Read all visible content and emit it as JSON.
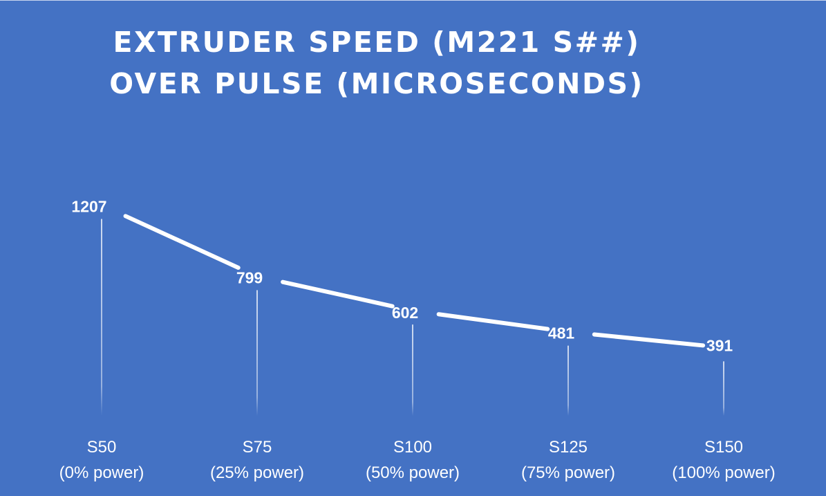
{
  "chart_data": {
    "type": "line",
    "title_lines": [
      "EXTRUDER SPEED (M221 S##)",
      "OVER PULSE (MICROSECONDS)"
    ],
    "categories": [
      [
        "S50",
        "(0% power)"
      ],
      [
        "S75",
        "(25% power)"
      ],
      [
        "S100",
        "(50% power)"
      ],
      [
        "S125",
        "(75% power)"
      ],
      [
        "S150",
        "(100% power)"
      ]
    ],
    "series": [
      {
        "values": [
          1207,
          799,
          602,
          481,
          391
        ]
      }
    ],
    "ylim": [
      0,
      1550
    ],
    "data_labels": true,
    "drop_lines": true,
    "grid": false,
    "legend": "none",
    "colors": {
      "background": "#4472C4",
      "line": "#ffffff",
      "drop_line": "#dfe7f5",
      "text": "#ffffff"
    }
  }
}
